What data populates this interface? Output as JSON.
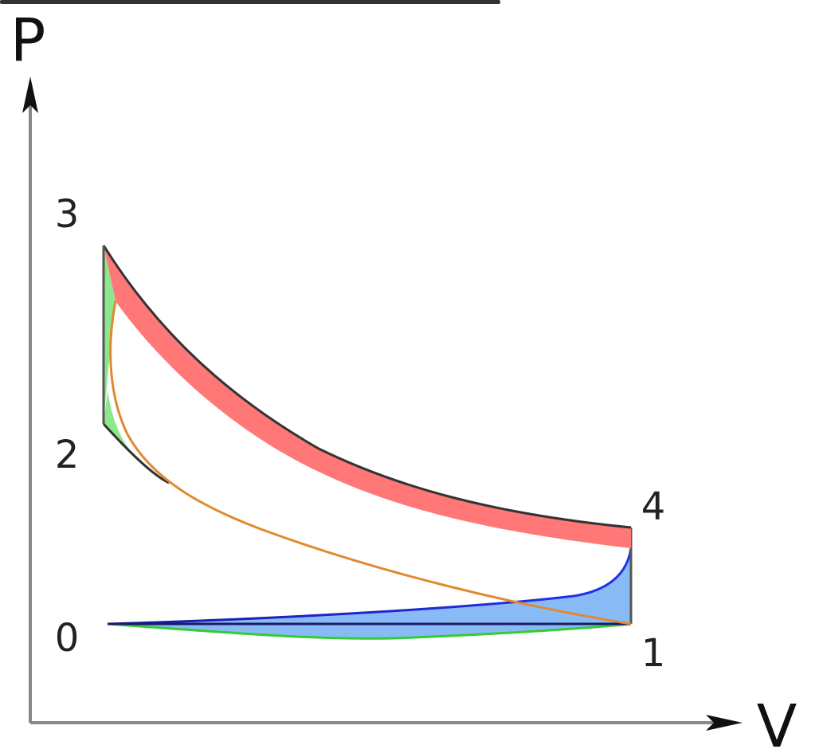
{
  "axes": {
    "y_label": "P",
    "x_label": "V"
  },
  "points": [
    {
      "label": "0"
    },
    {
      "label": "1"
    },
    {
      "label": "2"
    },
    {
      "label": "3"
    },
    {
      "label": "4"
    }
  ]
}
